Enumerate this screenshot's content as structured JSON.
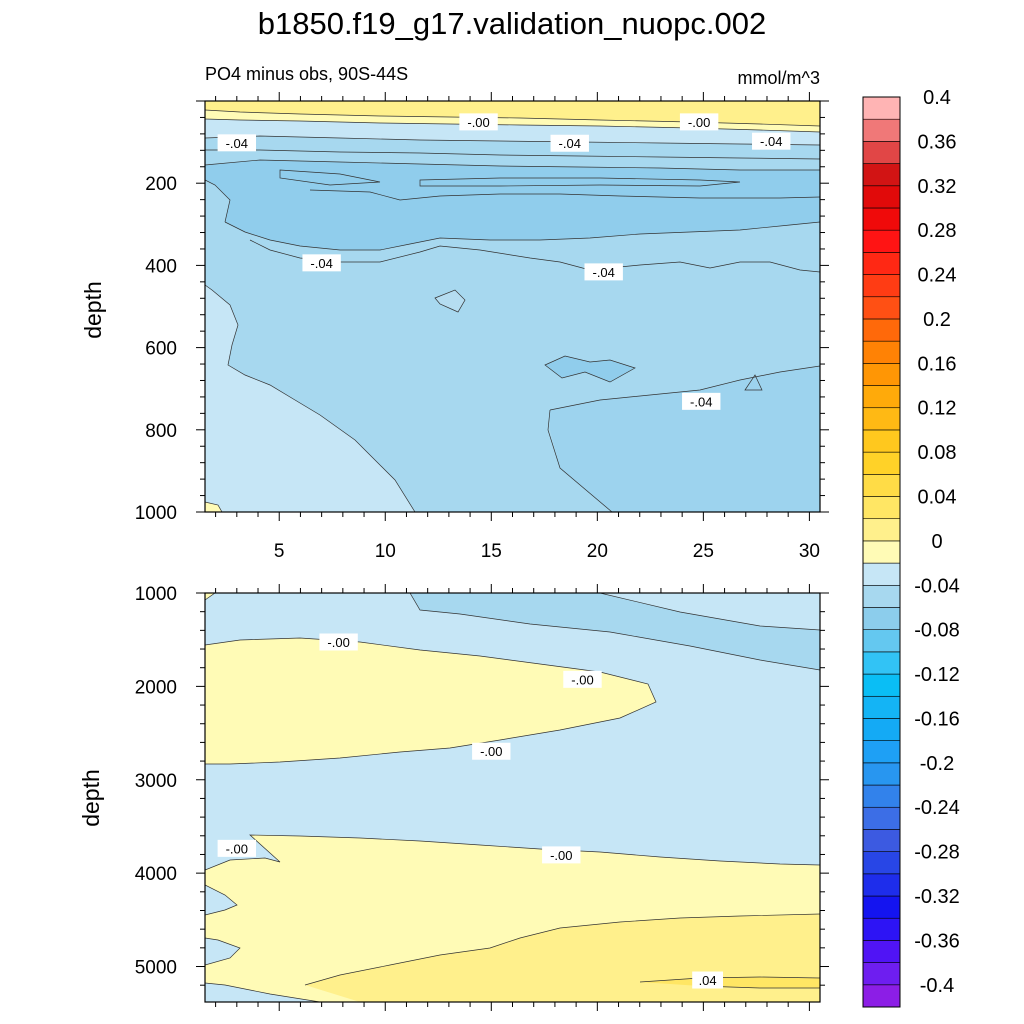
{
  "page": {
    "title": "b1850.f19_g17.validation_nuopc.002",
    "subtitle_left": "PO4 minus obs, 90S-44S",
    "subtitle_right": "mmol/m^3"
  },
  "colors": {
    "fill_light_yellow": "#fffbb6",
    "fill_yellow": "#fff08c",
    "fill_pale_blue": "#c6e6f6",
    "fill_light_blue": "#a7d8ef",
    "fill_mid_blue": "#90cdec"
  },
  "chart_data": [
    {
      "type": "contour",
      "name": "upper-panel",
      "ylabel": "depth",
      "xlim": [
        1.5,
        30.5
      ],
      "ylim": [
        1000,
        0
      ],
      "x_ticks": [
        5,
        10,
        15,
        20,
        25,
        30
      ],
      "x_tick_labels": [
        "5",
        "10",
        "15",
        "20",
        "25",
        "30"
      ],
      "y_ticks": [
        200,
        400,
        600,
        800,
        1000
      ],
      "y_tick_labels": [
        "200",
        "400",
        "600",
        "800",
        "1000"
      ],
      "contour_labels": [
        {
          "text": "-.00",
          "x": 14.4,
          "depth": 52
        },
        {
          "text": "-.00",
          "x": 24.8,
          "depth": 52
        },
        {
          "text": "-.04",
          "x": 3.0,
          "depth": 103
        },
        {
          "text": "-.04",
          "x": 18.7,
          "depth": 104
        },
        {
          "text": "-.04",
          "x": 28.2,
          "depth": 99
        },
        {
          "text": "-.04",
          "x": 7.0,
          "depth": 395
        },
        {
          "text": "-.04",
          "x": 20.3,
          "depth": 417
        },
        {
          "text": "-.04",
          "x": 24.9,
          "depth": 732
        }
      ]
    },
    {
      "type": "contour",
      "name": "lower-panel",
      "ylabel": "depth",
      "xlim": [
        1.5,
        30.5
      ],
      "ylim": [
        5380,
        1000
      ],
      "y_ticks": [
        1000,
        2000,
        3000,
        4000,
        5000
      ],
      "y_tick_labels": [
        "1000",
        "2000",
        "3000",
        "4000",
        "5000"
      ],
      "contour_labels": [
        {
          "text": "-.00",
          "x": 7.8,
          "depth": 1530
        },
        {
          "text": "-.00",
          "x": 19.3,
          "depth": 1930
        },
        {
          "text": "-.00",
          "x": 15.0,
          "depth": 2700
        },
        {
          "text": "-.00",
          "x": 3.0,
          "depth": 3740
        },
        {
          "text": "-.00",
          "x": 18.3,
          "depth": 3810
        },
        {
          "text": ".04",
          "x": 25.2,
          "depth": 5150
        }
      ]
    }
  ],
  "colorbar": {
    "levels": [
      "-0.4",
      "-0.38",
      "-0.36",
      "-0.34",
      "-0.32",
      "-0.3",
      "-0.28",
      "-0.26",
      "-0.24",
      "-0.22",
      "-0.2",
      "-0.18",
      "-0.16",
      "-0.14",
      "-0.12",
      "-0.1",
      "-0.08",
      "-0.06",
      "-0.04",
      "-0.02",
      "0",
      "0.02",
      "0.04",
      "0.06",
      "0.08",
      "0.1",
      "0.12",
      "0.14",
      "0.16",
      "0.18",
      "0.2",
      "0.22",
      "0.24",
      "0.26",
      "0.28",
      "0.3",
      "0.32",
      "0.34",
      "0.36",
      "0.38",
      "0.4"
    ],
    "labels": [
      "-0.4",
      "-0.36",
      "-0.32",
      "-0.28",
      "-0.24",
      "-0.2",
      "-0.16",
      "-0.12",
      "-0.08",
      "-0.04",
      "0",
      "0.04",
      "0.08",
      "0.12",
      "0.16",
      "0.2",
      "0.24",
      "0.28",
      "0.32",
      "0.36",
      "0.4"
    ],
    "colors_bottom_to_top": [
      "#8c1ee6",
      "#6e1ef0",
      "#5014f5",
      "#2d14f5",
      "#1414f0",
      "#1e2deb",
      "#2846e6",
      "#3c5ae1",
      "#3c6ee6",
      "#3282eb",
      "#2896f0",
      "#1ea0f5",
      "#14aaf5",
      "#14b4f5",
      "#0abef5",
      "#32c3f5",
      "#64c8f0",
      "#8ccdec",
      "#a7d8ef",
      "#c6e6f6",
      "#fffbb6",
      "#fff08c",
      "#ffe664",
      "#ffdc46",
      "#ffd228",
      "#ffc81e",
      "#ffb914",
      "#ffaa0a",
      "#ff9605",
      "#ff8205",
      "#ff690a",
      "#ff5014",
      "#ff3c14",
      "#ff2814",
      "#ff1414",
      "#f00a0a",
      "#e10a0a",
      "#d21414",
      "#e14646",
      "#f07878",
      "#ffb4b4"
    ]
  }
}
